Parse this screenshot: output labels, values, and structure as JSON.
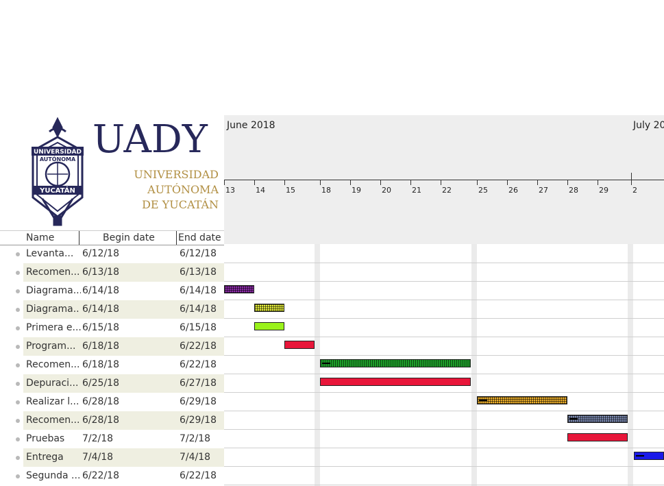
{
  "logo": {
    "wordmark": "UADY",
    "lines": [
      "UNIVERSIDAD",
      "AUTÓNOMA",
      "DE YUCATÁN"
    ],
    "seal_text": [
      "UNIVERSIDAD",
      "AUTÓNOMA",
      "YUCATÁN"
    ]
  },
  "timeline": {
    "months": [
      "June 2018",
      "July 20"
    ],
    "days": [
      "13",
      "14",
      "15",
      "18",
      "19",
      "20",
      "21",
      "22",
      "25",
      "26",
      "27",
      "28",
      "29",
      "2"
    ]
  },
  "columns": {
    "name": "Name",
    "begin": "Begin date",
    "end": "End date"
  },
  "tasks": [
    {
      "name": "Levanta...",
      "begin": "6/12/18",
      "end": "6/12/18",
      "color": "#7a2a8a",
      "pattern": "none",
      "progress": false
    },
    {
      "name": "Recomen...",
      "begin": "6/13/18",
      "end": "6/13/18",
      "color": "#8e2bab",
      "pattern": "hatch",
      "progress": false
    },
    {
      "name": "Diagrama...",
      "begin": "6/14/18",
      "end": "6/14/18",
      "color": "#e7f03a",
      "pattern": "hatch",
      "progress": false
    },
    {
      "name": "Diagrama...",
      "begin": "6/14/18",
      "end": "6/14/18",
      "color": "#9af21b",
      "pattern": "none",
      "progress": false
    },
    {
      "name": "Primera e...",
      "begin": "6/15/18",
      "end": "6/15/18",
      "color": "#e8163a",
      "pattern": "none",
      "progress": false
    },
    {
      "name": "Program...",
      "begin": "6/18/18",
      "end": "6/22/18",
      "color": "#1e9d2a",
      "pattern": "vhatch",
      "progress": true
    },
    {
      "name": "Recomen...",
      "begin": "6/18/18",
      "end": "6/22/18",
      "color": "#e8163a",
      "pattern": "none",
      "progress": false
    },
    {
      "name": "Depuraci...",
      "begin": "6/25/18",
      "end": "6/27/18",
      "color": "#f0b12b",
      "pattern": "hatch",
      "progress": true
    },
    {
      "name": "Realizar l...",
      "begin": "6/28/18",
      "end": "6/29/18",
      "color": "#7f8db5",
      "pattern": "hatch",
      "progress": true
    },
    {
      "name": "Recomen...",
      "begin": "6/28/18",
      "end": "6/29/18",
      "color": "#e8163a",
      "pattern": "none",
      "progress": false
    },
    {
      "name": "Pruebas",
      "begin": "7/2/18",
      "end": "7/2/18",
      "color": "#1a1ae8",
      "pattern": "none",
      "progress": true
    },
    {
      "name": "Entrega",
      "begin": "7/4/18",
      "end": "7/4/18",
      "color": "#ffffff",
      "pattern": "none",
      "progress": false
    },
    {
      "name": "Segunda ...",
      "begin": "6/22/18",
      "end": "6/22/18",
      "color": "#f03a5a",
      "pattern": "none",
      "progress": false
    }
  ]
}
